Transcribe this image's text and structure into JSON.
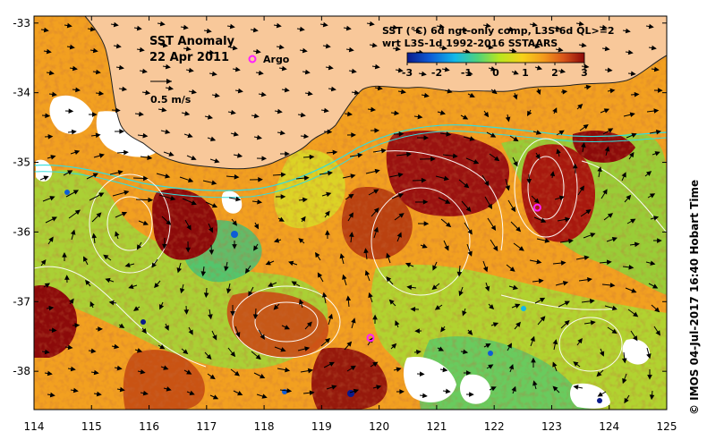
{
  "title": {
    "line1": "SST Anomaly",
    "line2": "22 Apr 2011"
  },
  "legend": {
    "argo_label": "Argo",
    "scale_label": "0.5 m/s"
  },
  "product": {
    "line1": "SST (°C) 6d ngt-only comp, L3S-6d QL>=2",
    "line2": "wrt L3S-1d 1992-2016 SSTAARS"
  },
  "colorbar": {
    "ticks": [
      "-3",
      "-2",
      "-1",
      "0",
      "1",
      "2",
      "3"
    ],
    "colors": [
      "#0a1a8c",
      "#0d5cd6",
      "#12b8e8",
      "#4fd37a",
      "#b8e61e",
      "#f6d21a",
      "#f39a1c",
      "#d9561a",
      "#8c0a0a"
    ]
  },
  "axes": {
    "x_ticks": [
      "114",
      "115",
      "116",
      "117",
      "118",
      "119",
      "120",
      "121",
      "122",
      "123",
      "124",
      "125"
    ],
    "y_ticks": [
      "-33",
      "-34",
      "-35",
      "-36",
      "-37",
      "-38"
    ]
  },
  "argo_floats": [
    {
      "lon": 122.75,
      "lat": -35.65
    },
    {
      "lon": 119.85,
      "lat": -37.52
    }
  ],
  "credit": "©  IMOS 04-Jul-2017 16:40 Hobart Time",
  "colors": {
    "land": "#f8c89a",
    "argo": "#ff20ff",
    "contour": "#ffffff",
    "shelf": "#33dddd"
  }
}
